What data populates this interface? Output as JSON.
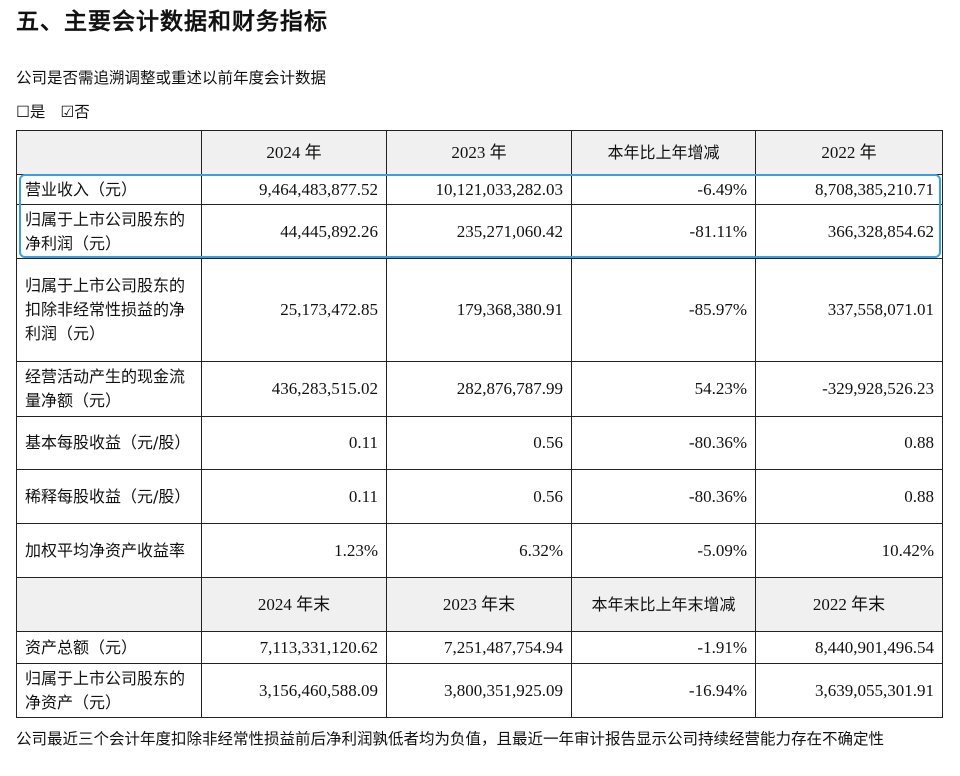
{
  "section_title": "五、主要会计数据和财务指标",
  "restate_question": "公司是否需追溯调整或重述以前年度会计数据",
  "restate_options": [
    {
      "box": "☐",
      "label": "是",
      "checked": false
    },
    {
      "box": "☑",
      "label": "否",
      "checked": true
    }
  ],
  "table": {
    "header_annual": [
      "",
      "2024 年",
      "2023 年",
      "本年比上年增减",
      "2022 年"
    ],
    "annual_rows": [
      {
        "label": "营业收入（元）",
        "values": [
          "9,464,483,877.52",
          "10,121,033,282.03",
          "-6.49%",
          "8,708,385,210.71"
        ]
      },
      {
        "label": "归属于上市公司股东的净利润（元）",
        "values": [
          "44,445,892.26",
          "235,271,060.42",
          "-81.11%",
          "366,328,854.62"
        ]
      },
      {
        "label": "归属于上市公司股东的扣除非经常性损益的净利润（元）",
        "values": [
          "25,173,472.85",
          "179,368,380.91",
          "-85.97%",
          "337,558,071.01"
        ]
      },
      {
        "label": "经营活动产生的现金流量净额（元）",
        "values": [
          "436,283,515.02",
          "282,876,787.99",
          "54.23%",
          "-329,928,526.23"
        ]
      },
      {
        "label": "基本每股收益（元/股）",
        "values": [
          "0.11",
          "0.56",
          "-80.36%",
          "0.88"
        ]
      },
      {
        "label": "稀释每股收益（元/股）",
        "values": [
          "0.11",
          "0.56",
          "-80.36%",
          "0.88"
        ]
      },
      {
        "label": "加权平均净资产收益率",
        "values": [
          "1.23%",
          "6.32%",
          "-5.09%",
          "10.42%"
        ]
      }
    ],
    "header_yearend": [
      "",
      "2024 年末",
      "2023 年末",
      "本年末比上年末增减",
      "2022 年末"
    ],
    "yearend_rows": [
      {
        "label": "资产总额（元）",
        "values": [
          "7,113,331,120.62",
          "7,251,487,754.94",
          "-1.91%",
          "8,440,901,496.54"
        ]
      },
      {
        "label": "归属于上市公司股东的净资产（元）",
        "values": [
          "3,156,460,588.09",
          "3,800,351,925.09",
          "-16.94%",
          "3,639,055,301.91"
        ]
      }
    ]
  },
  "footer_note": "公司最近三个会计年度扣除非经常性损益前后净利润孰低者均为负值，且最近一年审计报告显示公司持续经营能力存在不确定性",
  "colors": {
    "highlight_border": "#3aa0e6",
    "header_bg": "#f0f0f0"
  }
}
